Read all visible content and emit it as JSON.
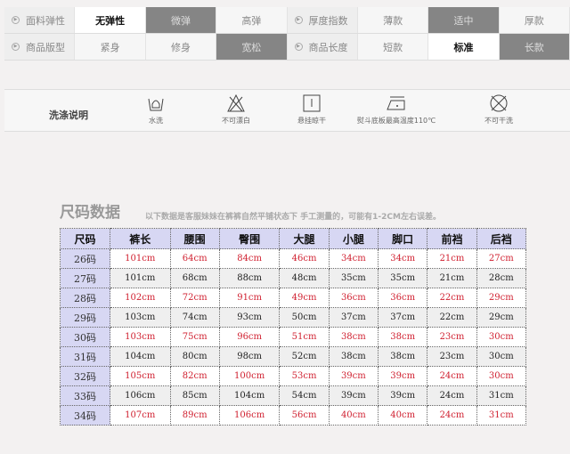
{
  "attributes": [
    {
      "label": "面料弹性",
      "options": [
        "无弹性",
        "微弹",
        "高弹"
      ],
      "styles": [
        "on",
        "dk",
        ""
      ]
    },
    {
      "label": "厚度指数",
      "options": [
        "薄款",
        "适中",
        "厚款"
      ],
      "styles": [
        "",
        "dk",
        ""
      ]
    },
    {
      "label": "商品版型",
      "options": [
        "紧身",
        "修身",
        "宽松"
      ],
      "styles": [
        "",
        "",
        "dk"
      ]
    },
    {
      "label": "商品长度",
      "options": [
        "短款",
        "标准",
        "长款"
      ],
      "styles": [
        "",
        "on",
        "dk"
      ]
    }
  ],
  "wash": {
    "title": "洗涤说明",
    "items": [
      {
        "icon": "hand-wash-icon",
        "label": "水洗"
      },
      {
        "icon": "no-bleach-icon",
        "label": "不可漂白"
      },
      {
        "icon": "hang-dry-icon",
        "label": "悬挂晾干"
      },
      {
        "icon": "iron-icon",
        "label": "熨斗底板最高温度110℃"
      },
      {
        "icon": "no-dry-clean-icon",
        "label": "不可干洗"
      }
    ]
  },
  "size": {
    "title": "尺码数据",
    "note": "以下数据是客服妹妹在裤裤自然平铺状态下 手工测量的，可能有1-2CM左右误差。",
    "headers": [
      "尺码",
      "裤长",
      "腰围",
      "臀围",
      "大腿",
      "小腿",
      "脚口",
      "前裆",
      "后裆"
    ],
    "rows": [
      [
        "26码",
        "101cm",
        "64cm",
        "84cm",
        "46cm",
        "34cm",
        "34cm",
        "21cm",
        "27cm"
      ],
      [
        "27码",
        "101cm",
        "68cm",
        "88cm",
        "48cm",
        "35cm",
        "35cm",
        "21cm",
        "28cm"
      ],
      [
        "28码",
        "102cm",
        "72cm",
        "91cm",
        "49cm",
        "36cm",
        "36cm",
        "22cm",
        "29cm"
      ],
      [
        "29码",
        "103cm",
        "74cm",
        "93cm",
        "50cm",
        "37cm",
        "37cm",
        "22cm",
        "29cm"
      ],
      [
        "30码",
        "103cm",
        "75cm",
        "96cm",
        "51cm",
        "38cm",
        "38cm",
        "23cm",
        "30cm"
      ],
      [
        "31码",
        "104cm",
        "80cm",
        "98cm",
        "52cm",
        "38cm",
        "38cm",
        "23cm",
        "30cm"
      ],
      [
        "32码",
        "105cm",
        "82cm",
        "100cm",
        "53cm",
        "39cm",
        "39cm",
        "24cm",
        "30cm"
      ],
      [
        "33码",
        "106cm",
        "85cm",
        "104cm",
        "54cm",
        "39cm",
        "39cm",
        "24cm",
        "31cm"
      ],
      [
        "34码",
        "107cm",
        "89cm",
        "106cm",
        "56cm",
        "40cm",
        "40cm",
        "24cm",
        "31cm"
      ]
    ]
  },
  "colors": {
    "highlight": "#d02030",
    "header_bg": "#d7d7f3"
  }
}
